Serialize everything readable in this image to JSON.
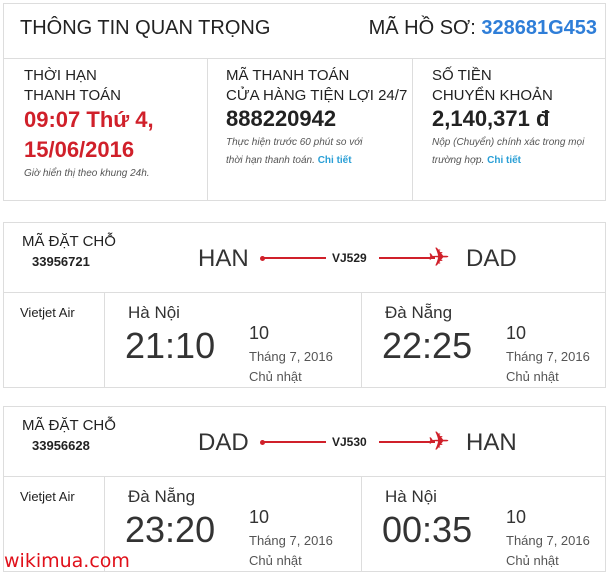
{
  "header": {
    "title": "THÔNG TIN QUAN TRỌNG",
    "record_label": "MÃ HỒ SƠ:",
    "record_code": "328681G453"
  },
  "deadline": {
    "label_line1": "THỜI HẠN",
    "label_line2": "THANH TOÁN",
    "value_line1": "09:07 Thứ 4,",
    "value_line2": "15/06/2016",
    "note": "Giờ hiển thị theo khung 24h."
  },
  "payment_code": {
    "label_line1": "MÃ THANH TOÁN",
    "label_line2": "CỬA HÀNG TIỆN LỢI 24/7",
    "value": "888220942",
    "note_line1": "Thực hiện trước 60 phút so với",
    "note_line2": "thời hạn thanh toán.",
    "link": "Chi tiết"
  },
  "amount": {
    "label_line1": "SỐ TIỀN",
    "label_line2": "CHUYỂN KHOẢN",
    "value": "2,140,371 đ",
    "note_line1": "Nộp (Chuyển) chính xác trong mọi",
    "note_line2": "trường hợp.",
    "link": "Chi tiết"
  },
  "colors": {
    "accent_red": "#d0202a",
    "link_blue": "#2a9fd6",
    "record_blue": "#2f7ed8"
  },
  "flights": [
    {
      "booking_label": "MÃ ĐẶT CHỖ",
      "booking_code": "33956721",
      "from": "HAN",
      "to": "DAD",
      "flight_no": "VJ529",
      "airline": "Vietjet Air",
      "depart": {
        "city": "Hà Nội",
        "time": "21:10",
        "day": "10",
        "month_year": "Tháng 7, 2016",
        "weekday": "Chủ nhật"
      },
      "arrive": {
        "city": "Đà Nẵng",
        "time": "22:25",
        "day": "10",
        "month_year": "Tháng 7, 2016",
        "weekday": "Chủ nhật"
      }
    },
    {
      "booking_label": "MÃ ĐẶT CHỖ",
      "booking_code": "33956628",
      "from": "DAD",
      "to": "HAN",
      "flight_no": "VJ530",
      "airline": "Vietjet Air",
      "depart": {
        "city": "Đà Nẵng",
        "time": "23:20",
        "day": "10",
        "month_year": "Tháng 7, 2016",
        "weekday": "Chủ nhật"
      },
      "arrive": {
        "city": "Hà Nội",
        "time": "00:35",
        "day": "10",
        "month_year": "Tháng 7, 2016",
        "weekday": "Chủ nhật"
      }
    }
  ],
  "watermark": "wikimua.com"
}
